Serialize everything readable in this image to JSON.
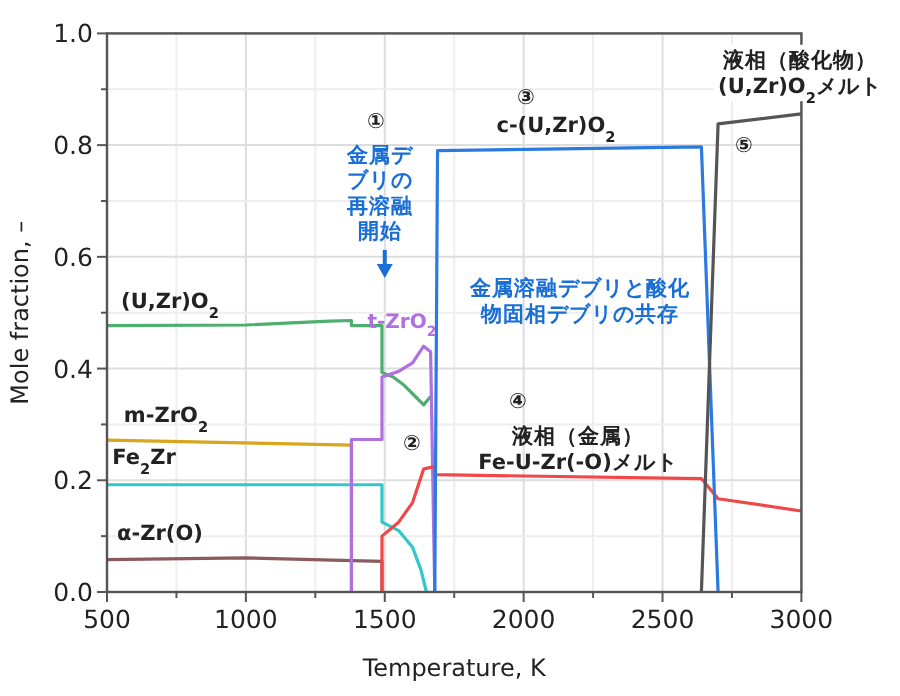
{
  "chart_data": {
    "type": "line",
    "xlabel": "Temperature, K",
    "ylabel": "Mole fraction, –",
    "xlim": [
      500,
      3000
    ],
    "ylim": [
      0,
      1
    ],
    "xticks": [
      500,
      {
        "value": 750,
        "label": null
      },
      1000,
      {
        "value": 1250,
        "label": null
      },
      1500,
      {
        "value": 1750,
        "label": null
      },
      2000,
      {
        "value": 2250,
        "label": null
      },
      2500,
      {
        "value": 2750,
        "label": null
      },
      3000
    ],
    "yticks": [
      {
        "value": 0,
        "label": "0.0"
      },
      {
        "value": 0.1,
        "label": null
      },
      0.2,
      {
        "value": 0.3,
        "label": null
      },
      0.4,
      {
        "value": 0.5,
        "label": null
      },
      0.6,
      {
        "value": 0.7,
        "label": null
      },
      0.8,
      {
        "value": 0.9,
        "label": null
      },
      {
        "value": 1,
        "label": "1.0"
      }
    ],
    "grid": true,
    "marker": "none",
    "line_style": "solid",
    "series": [
      {
        "name": "(U,Zr)O$_{2}$",
        "color": "#4caf6e",
        "x": [
          500,
          1000,
          1300,
          1380,
          1380,
          1490,
          1490,
          1530,
          1570,
          1610,
          1640,
          1665
        ],
        "values": [
          0.477,
          0.478,
          0.485,
          0.486,
          0.477,
          0.477,
          0.393,
          0.385,
          0.37,
          0.35,
          0.335,
          0.35
        ]
      },
      {
        "name": "m-ZrO$_{2}$",
        "color": "#d8a51c",
        "x": [
          500,
          1380,
          1380
        ],
        "values": [
          0.272,
          0.263,
          0
        ]
      },
      {
        "name": "Fe$_{2}$Zr",
        "color": "#30c8c8",
        "x": [
          500,
          1490,
          1490,
          1550,
          1600,
          1630,
          1650
        ],
        "values": [
          0.192,
          0.192,
          0.125,
          0.11,
          0.08,
          0.04,
          0
        ]
      },
      {
        "name": "α-Zr(O)",
        "color": "#8b5a5a",
        "x": [
          500,
          1000,
          1490,
          1490
        ],
        "values": [
          0.058,
          0.061,
          0.055,
          0
        ]
      },
      {
        "name": "t-ZrO$_{2}$",
        "color": "#b070e0",
        "x": [
          1380,
          1380,
          1490,
          1490,
          1550,
          1600,
          1640,
          1665,
          1680
        ],
        "values": [
          0,
          0.273,
          0.273,
          0.385,
          0.395,
          0.41,
          0.44,
          0.43,
          0
        ]
      },
      {
        "name": "液相（金属）Fe-U-Zr(-O)メルト",
        "color": "#f04848",
        "x": [
          1490,
          1490,
          1550,
          1600,
          1640,
          1680,
          1680,
          2640,
          2700,
          3000
        ],
        "values": [
          0,
          0.1,
          0.125,
          0.16,
          0.22,
          0.225,
          0.21,
          0.203,
          0.167,
          0.145
        ]
      },
      {
        "name": "c-(U,Zr)O$_{2}$",
        "color": "#2a7ae0",
        "x": [
          1680,
          1690,
          2640,
          2700
        ],
        "values": [
          0,
          0.79,
          0.797,
          0
        ]
      },
      {
        "name": "液相（酸化物）(U,Zr)O$_{2}$メルト",
        "color": "#555555",
        "x": [
          2640,
          2700,
          3000
        ],
        "values": [
          0,
          0.838,
          0.856
        ]
      }
    ],
    "annotations": [
      "①",
      "金属デブリの再溶融開始",
      "②",
      "③",
      "金属溶融デブリと酸化物固相デブリの共存",
      "④",
      "⑤"
    ]
  }
}
